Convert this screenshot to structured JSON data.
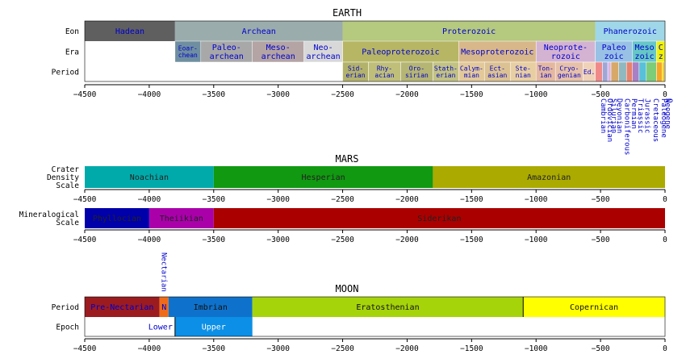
{
  "chart_data": {
    "type": "timeline",
    "x_range": [
      -4500,
      0
    ],
    "tick_values": [
      -4500,
      -4000,
      -3500,
      -3000,
      -2500,
      -2000,
      -1500,
      -1000,
      -500,
      0
    ],
    "tick_labels": [
      "−4500",
      "−4000",
      "−3500",
      "−3000",
      "−2500",
      "−2000",
      "−1500",
      "−1000",
      "−500",
      "0"
    ],
    "sections": {
      "earth": {
        "title": "EARTH",
        "rows": [
          {
            "key": "eon",
            "label": "Eon",
            "segments": [
              {
                "label": "Hadean",
                "start": -4500,
                "end": -3800,
                "color": "#5f5f5f",
                "text_color": "#0000cc"
              },
              {
                "label": "Archean",
                "start": -3800,
                "end": -2500,
                "color": "#9aacac",
                "text_color": "#0000cc"
              },
              {
                "label": "Proterozoic",
                "start": -2500,
                "end": -541,
                "color": "#b5c97f",
                "text_color": "#0000cc"
              },
              {
                "label": "Phanerozoic",
                "start": -541,
                "end": 0,
                "color": "#9fd7e8",
                "text_color": "#0000cc"
              }
            ]
          },
          {
            "key": "era",
            "label": "Era",
            "segments": [
              {
                "label": "Eoar- chean",
                "start": -3800,
                "end": -3600,
                "color": "#6f8fa0",
                "text_color": "#0000cc",
                "font_size": 8
              },
              {
                "label": "Paleo- archean",
                "start": -3600,
                "end": -3200,
                "color": "#a8a8a8",
                "text_color": "#0000cc"
              },
              {
                "label": "Meso- archean",
                "start": -3200,
                "end": -2800,
                "color": "#b4a4a4",
                "text_color": "#0000cc"
              },
              {
                "label": "Neo- archean",
                "start": -2800,
                "end": -2500,
                "color": "#d8d8d8",
                "text_color": "#0000cc"
              },
              {
                "label": "Paleoproterozoic",
                "start": -2500,
                "end": -1600,
                "color": "#b7b665",
                "text_color": "#0000cc"
              },
              {
                "label": "Mesoproterozoic",
                "start": -1600,
                "end": -1000,
                "color": "#d8b88a",
                "text_color": "#0000cc"
              },
              {
                "label": "Neoprote- rozoic",
                "start": -1000,
                "end": -541,
                "color": "#d4b3d2",
                "text_color": "#0000cc"
              },
              {
                "label": "Paleo zoic",
                "start": -541,
                "end": -252,
                "color": "#99c1e6",
                "text_color": "#0000cc"
              },
              {
                "label": "Meso zoic",
                "start": -252,
                "end": -66,
                "color": "#66c7c7",
                "text_color": "#0000cc"
              },
              {
                "label": "C z",
                "start": -66,
                "end": 0,
                "color": "#f2f200",
                "text_color": "#0000cc"
              }
            ]
          },
          {
            "key": "period",
            "label": "Period",
            "segments": [
              {
                "label": "Sid- erian",
                "start": -2500,
                "end": -2300,
                "color": "#b3b26b",
                "text_color": "#0000cc",
                "font_size": 8
              },
              {
                "label": "Rhy- acian",
                "start": -2300,
                "end": -2050,
                "color": "#bfbf7a",
                "text_color": "#0000cc",
                "font_size": 8
              },
              {
                "label": "Oro- sirian",
                "start": -2050,
                "end": -1800,
                "color": "#b5b574",
                "text_color": "#0000cc",
                "font_size": 8
              },
              {
                "label": "Stath- erian",
                "start": -1800,
                "end": -1600,
                "color": "#c2c283",
                "text_color": "#0000cc",
                "font_size": 8
              },
              {
                "label": "Calym- mian",
                "start": -1600,
                "end": -1400,
                "color": "#e3c99a",
                "text_color": "#0000cc",
                "font_size": 8
              },
              {
                "label": "Ect- asian",
                "start": -1400,
                "end": -1200,
                "color": "#dcc293",
                "text_color": "#0000cc",
                "font_size": 8
              },
              {
                "label": "Ste- nian",
                "start": -1200,
                "end": -1000,
                "color": "#e8cfa2",
                "text_color": "#0000cc",
                "font_size": 8
              },
              {
                "label": "Ton- ian",
                "start": -1000,
                "end": -850,
                "color": "#e4b8a0",
                "text_color": "#0000cc",
                "font_size": 8
              },
              {
                "label": "Cryo- genian",
                "start": -850,
                "end": -635,
                "color": "#e6c0a8",
                "text_color": "#0000cc",
                "font_size": 8
              },
              {
                "label": "Ed.",
                "start": -635,
                "end": -541,
                "color": "#f0d2b8",
                "text_color": "#0000cc",
                "font_size": 8
              },
              {
                "label": "",
                "start": -541,
                "end": -485,
                "color": "#f08a8a"
              },
              {
                "label": "",
                "start": -485,
                "end": -444,
                "color": "#9fa6d6"
              },
              {
                "label": "",
                "start": -444,
                "end": -419,
                "color": "#d8b4e6"
              },
              {
                "label": "",
                "start": -419,
                "end": -359,
                "color": "#d7a868"
              },
              {
                "label": "",
                "start": -359,
                "end": -299,
                "color": "#8fb8c0"
              },
              {
                "label": "",
                "start": -299,
                "end": -252,
                "color": "#e8826c"
              },
              {
                "label": "",
                "start": -252,
                "end": -201,
                "color": "#a97fc6"
              },
              {
                "label": "",
                "start": -201,
                "end": -145,
                "color": "#58c0d8"
              },
              {
                "label": "",
                "start": -145,
                "end": -66,
                "color": "#7ccc78"
              },
              {
                "label": "",
                "start": -66,
                "end": -23,
                "color": "#f5a623"
              },
              {
                "label": "",
                "start": -23,
                "end": -2.6,
                "color": "#f7d11f"
              },
              {
                "label": "",
                "start": -2.6,
                "end": 0,
                "color": "#fff18c"
              }
            ]
          }
        ],
        "period_names_below": [
          {
            "label": "Cambrian",
            "at": -513
          },
          {
            "label": "Ordovician",
            "at": -464
          },
          {
            "label": "Silurian",
            "at": -431
          },
          {
            "label": "Devonian",
            "at": -389
          },
          {
            "label": "Carboniferous",
            "at": -329
          },
          {
            "label": "Permian",
            "at": -275
          },
          {
            "label": "Triassic",
            "at": -226
          },
          {
            "label": "Jurassic",
            "at": -173
          },
          {
            "label": "Cretaceous",
            "at": -105
          },
          {
            "label": "Paleogene",
            "at": -44
          },
          {
            "label": "Neogene",
            "at": -12
          },
          {
            "label": "Q",
            "at": -1
          }
        ]
      },
      "mars": {
        "title": "MARS",
        "rows": [
          {
            "key": "crater",
            "label": "Crater Density Scale",
            "segments": [
              {
                "label": "Noachian",
                "start": -4500,
                "end": -3500,
                "color": "#00aaaa",
                "text_color": "#222222"
              },
              {
                "label": "Hesperian",
                "start": -3500,
                "end": -1800,
                "color": "#119911",
                "text_color": "#222222"
              },
              {
                "label": "Amazonian",
                "start": -1800,
                "end": 0,
                "color": "#aaaa00",
                "text_color": "#222222"
              }
            ]
          },
          {
            "key": "mineral",
            "label": "Mineralogical Scale",
            "segments": [
              {
                "label": "Phyllocian",
                "start": -4500,
                "end": -4000,
                "color": "#0000aa",
                "text_color": "#222222"
              },
              {
                "label": "Theiikian",
                "start": -4000,
                "end": -3500,
                "color": "#aa00aa",
                "text_color": "#222222"
              },
              {
                "label": "Siderikan",
                "start": -3500,
                "end": 0,
                "color": "#aa0000",
                "text_color": "#222222"
              }
            ]
          }
        ]
      },
      "moon": {
        "title": "MOON",
        "rows": [
          {
            "key": "period",
            "label": "Period",
            "segments": [
              {
                "label": "Pre-Nectarian",
                "start": -4500,
                "end": -3920,
                "color": "#9b1b1f",
                "text_color": "#0000cc"
              },
              {
                "label": "N",
                "start": -3920,
                "end": -3850,
                "color": "#ef6b1a",
                "text_color": "#0000cc"
              },
              {
                "label": "Imbrian",
                "start": -3850,
                "end": -3200,
                "color": "#0e72cc",
                "text_color": "#111111"
              },
              {
                "label": "Eratosthenian",
                "start": -3200,
                "end": -1100,
                "color": "#a6d40a",
                "text_color": "#111111"
              },
              {
                "label": "Copernican",
                "start": -1100,
                "end": 0,
                "color": "#ffff00",
                "text_color": "#111111"
              }
            ]
          },
          {
            "key": "epoch",
            "label": "Epoch",
            "segments": [
              {
                "label": "Lower",
                "start": -3850,
                "end": -3800,
                "color": "#ffffff",
                "text_color": "#0000cc",
                "label_anchor": "end"
              },
              {
                "label": "Upper",
                "start": -3800,
                "end": -3200,
                "color": "#0c8fe6",
                "text_color": "#ffffff"
              }
            ]
          }
        ],
        "rotated_note": {
          "label": "Nectarian",
          "at": -3885
        }
      }
    }
  }
}
